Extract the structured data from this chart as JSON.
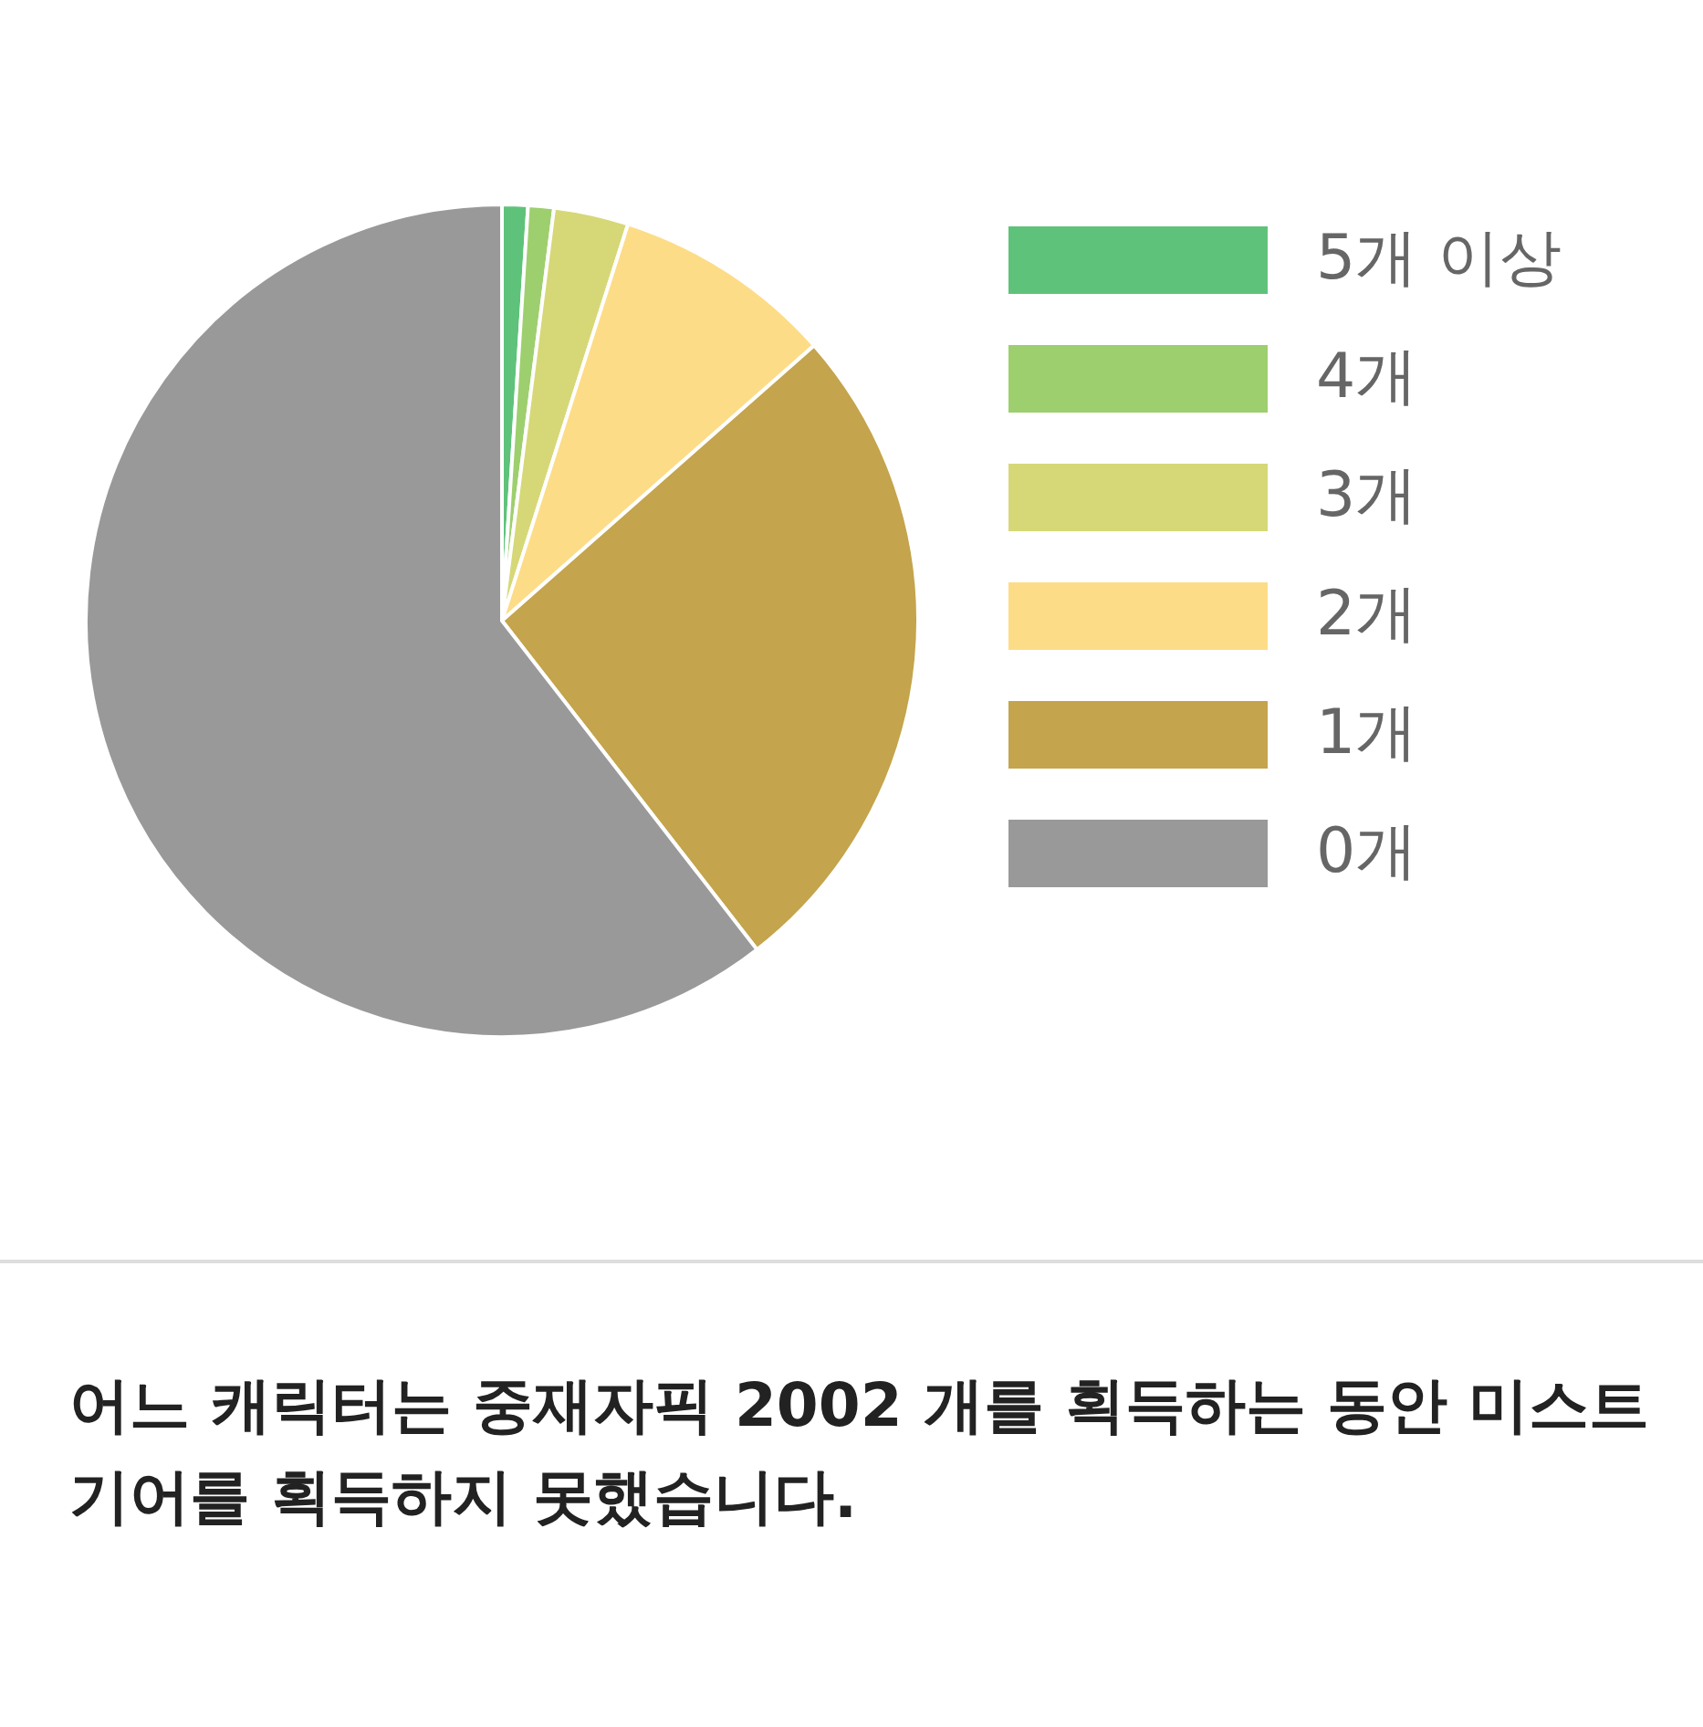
{
  "chart_data": {
    "type": "pie",
    "categories": [
      "5개 이상",
      "4개",
      "3개",
      "2개",
      "1개",
      "0개"
    ],
    "values": [
      1.0,
      1.0,
      2.9,
      8.6,
      26.0,
      60.5
    ],
    "colors": [
      "#5fc27a",
      "#9ecf6e",
      "#d6d877",
      "#fddc87",
      "#c4a44c",
      "#999999"
    ],
    "legend": "right",
    "annotations": [
      "어느 캐릭터는 중재자픽 2002 개를 획득하는 동안 미스트기어를 획득하지 못했습니다."
    ]
  }
}
